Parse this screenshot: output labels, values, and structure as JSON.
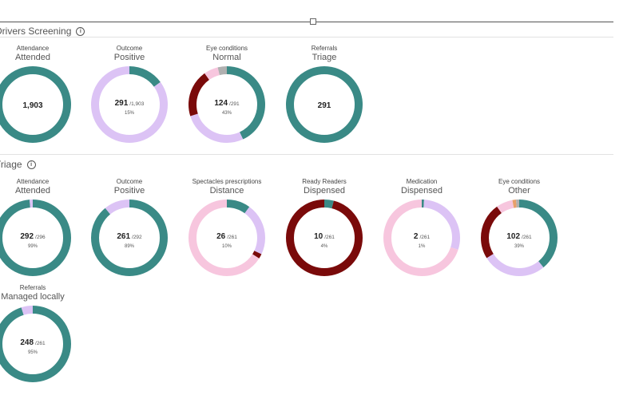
{
  "colors": {
    "teal": "#3a8a86",
    "lavender": "#dcc3f5",
    "maroon": "#7a0a0a",
    "pink": "#f7c6de",
    "grey": "#b0b0b0",
    "orange": "#e8a06a"
  },
  "sections": {
    "drivers": {
      "title": "Drivers Screening"
    },
    "triage": {
      "title": "Triage"
    }
  },
  "cards": {
    "ds_attendance": {
      "category": "Attendance",
      "subtitle": "Attended",
      "main": "1,903",
      "denom": "",
      "pct": "",
      "segments": [
        {
          "color": "teal",
          "value": 1
        }
      ]
    },
    "ds_outcome": {
      "category": "Outcome",
      "subtitle": "Positive",
      "main": "291",
      "denom": "/1,903",
      "pct": "15%",
      "segments": [
        {
          "color": "teal",
          "value": 0.15
        },
        {
          "color": "lavender",
          "value": 0.85
        }
      ]
    },
    "ds_eye": {
      "category": "Eye conditions",
      "subtitle": "Normal",
      "main": "124",
      "denom": "/291",
      "pct": "43%",
      "segments": [
        {
          "color": "teal",
          "value": 0.43
        },
        {
          "color": "lavender",
          "value": 0.27
        },
        {
          "color": "maroon",
          "value": 0.2
        },
        {
          "color": "pink",
          "value": 0.06
        },
        {
          "color": "grey",
          "value": 0.04
        }
      ]
    },
    "ds_referrals": {
      "category": "Referrals",
      "subtitle": "Triage",
      "main": "291",
      "denom": "",
      "pct": "",
      "segments": [
        {
          "color": "teal",
          "value": 1
        }
      ]
    },
    "tr_attendance": {
      "category": "Attendance",
      "subtitle": "Attended",
      "main": "292",
      "denom": "/296",
      "pct": "99%",
      "segments": [
        {
          "color": "teal",
          "value": 0.985
        },
        {
          "color": "lavender",
          "value": 0.015
        }
      ]
    },
    "tr_outcome": {
      "category": "Outcome",
      "subtitle": "Positive",
      "main": "261",
      "denom": "/292",
      "pct": "89%",
      "segments": [
        {
          "color": "teal",
          "value": 0.89
        },
        {
          "color": "lavender",
          "value": 0.11
        }
      ]
    },
    "tr_spectacles": {
      "category": "Spectacles prescriptions",
      "subtitle": "Distance",
      "main": "26",
      "denom": "/261",
      "pct": "10%",
      "segments": [
        {
          "color": "teal",
          "value": 0.1
        },
        {
          "color": "lavender",
          "value": 0.22
        },
        {
          "color": "maroon",
          "value": 0.02
        },
        {
          "color": "pink",
          "value": 0.66
        }
      ]
    },
    "tr_readers": {
      "category": "Ready Readers",
      "subtitle": "Dispensed",
      "main": "10",
      "denom": "/261",
      "pct": "4%",
      "segments": [
        {
          "color": "teal",
          "value": 0.04
        },
        {
          "color": "maroon",
          "value": 0.96
        }
      ]
    },
    "tr_medication": {
      "category": "Medication",
      "subtitle": "Dispensed",
      "main": "2",
      "denom": "/261",
      "pct": "1%",
      "segments": [
        {
          "color": "teal",
          "value": 0.01
        },
        {
          "color": "lavender",
          "value": 0.29
        },
        {
          "color": "pink",
          "value": 0.7
        }
      ]
    },
    "tr_eye": {
      "category": "Eye conditions",
      "subtitle": "Other",
      "main": "102",
      "denom": "/261",
      "pct": "39%",
      "segments": [
        {
          "color": "teal",
          "value": 0.39
        },
        {
          "color": "lavender",
          "value": 0.27
        },
        {
          "color": "maroon",
          "value": 0.24
        },
        {
          "color": "pink",
          "value": 0.07
        },
        {
          "color": "orange",
          "value": 0.015
        },
        {
          "color": "grey",
          "value": 0.015
        }
      ]
    },
    "tr_referrals": {
      "category": "Referrals",
      "subtitle": "Managed locally",
      "main": "248",
      "denom": "/261",
      "pct": "95%",
      "segments": [
        {
          "color": "teal",
          "value": 0.95
        },
        {
          "color": "lavender",
          "value": 0.05
        }
      ]
    }
  }
}
